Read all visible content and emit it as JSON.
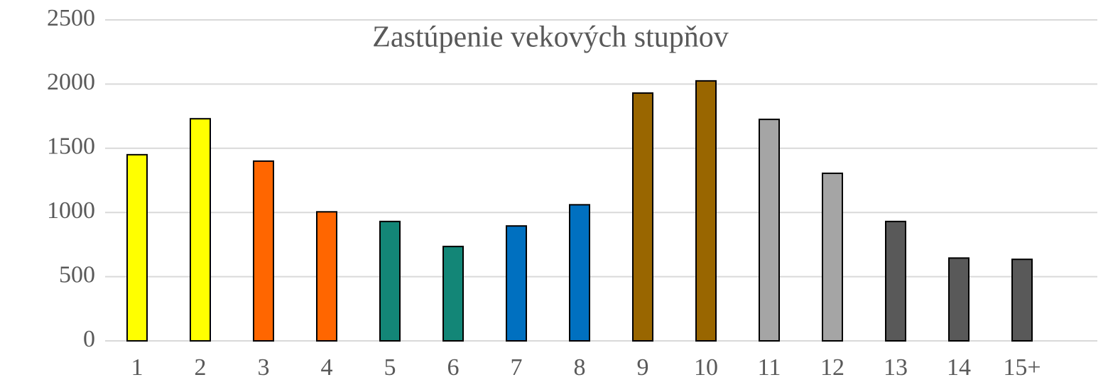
{
  "chart_data": {
    "type": "bar",
    "title": "Zastúpenie vekových stupňov",
    "categories": [
      "1",
      "2",
      "3",
      "4",
      "5",
      "6",
      "7",
      "8",
      "9",
      "10",
      "11",
      "12",
      "13",
      "14",
      "15+"
    ],
    "values": [
      1450,
      1730,
      1400,
      1005,
      930,
      735,
      895,
      1060,
      1930,
      2025,
      1725,
      1305,
      930,
      645,
      635
    ],
    "colors": [
      "#ffff00",
      "#ffff00",
      "#ff6600",
      "#ff6600",
      "#138677",
      "#138677",
      "#0070c0",
      "#0070c0",
      "#996600",
      "#996600",
      "#a5a5a5",
      "#a5a5a5",
      "#595959",
      "#595959",
      "#595959"
    ],
    "ylim": [
      0,
      2500
    ],
    "yticks": [
      0,
      500,
      1000,
      1500,
      2000,
      2500
    ],
    "grid": true
  }
}
